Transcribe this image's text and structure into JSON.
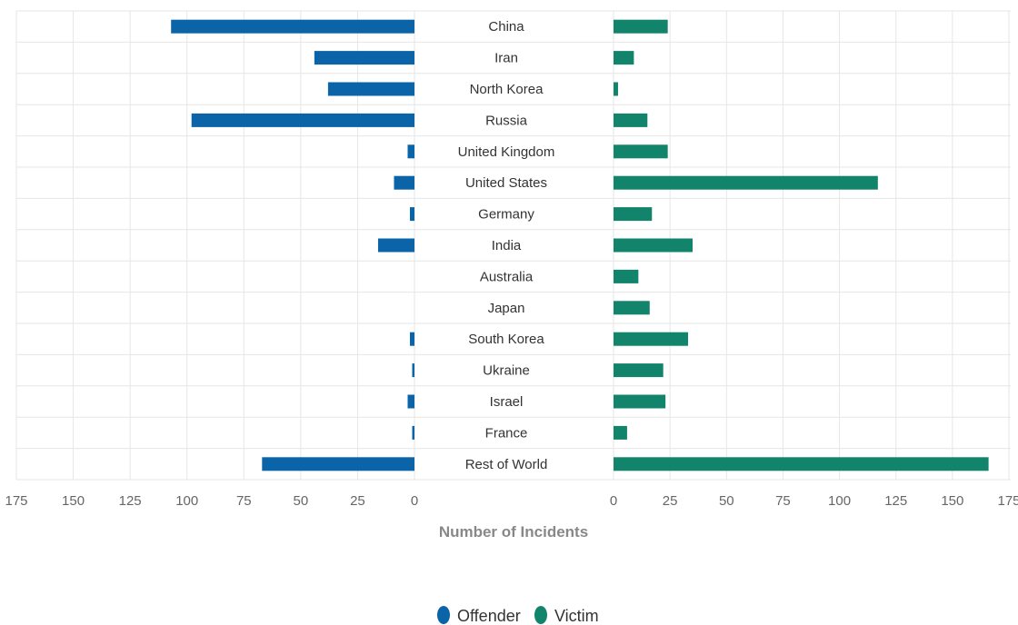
{
  "chart_data": {
    "type": "bar",
    "orientation": "horizontal",
    "layout": "butterfly",
    "categories": [
      "China",
      "Iran",
      "North Korea",
      "Russia",
      "United Kingdom",
      "United States",
      "Germany",
      "India",
      "Australia",
      "Japan",
      "South Korea",
      "Ukraine",
      "Israel",
      "France",
      "Rest of World"
    ],
    "series": [
      {
        "name": "Offender",
        "color": "#0b63a8",
        "side": "left",
        "values": [
          107,
          44,
          38,
          98,
          3,
          9,
          2,
          16,
          0,
          0,
          2,
          1,
          3,
          1,
          67
        ]
      },
      {
        "name": "Victim",
        "color": "#12846b",
        "side": "right",
        "values": [
          24,
          9,
          2,
          15,
          24,
          117,
          17,
          35,
          11,
          16,
          33,
          22,
          23,
          6,
          166
        ]
      }
    ],
    "xlabel": "Number of Incidents",
    "xlim": [
      0,
      175
    ],
    "xticks": [
      0,
      25,
      50,
      75,
      100,
      125,
      150,
      175
    ],
    "grid": true,
    "legend_position": "bottom-center"
  }
}
